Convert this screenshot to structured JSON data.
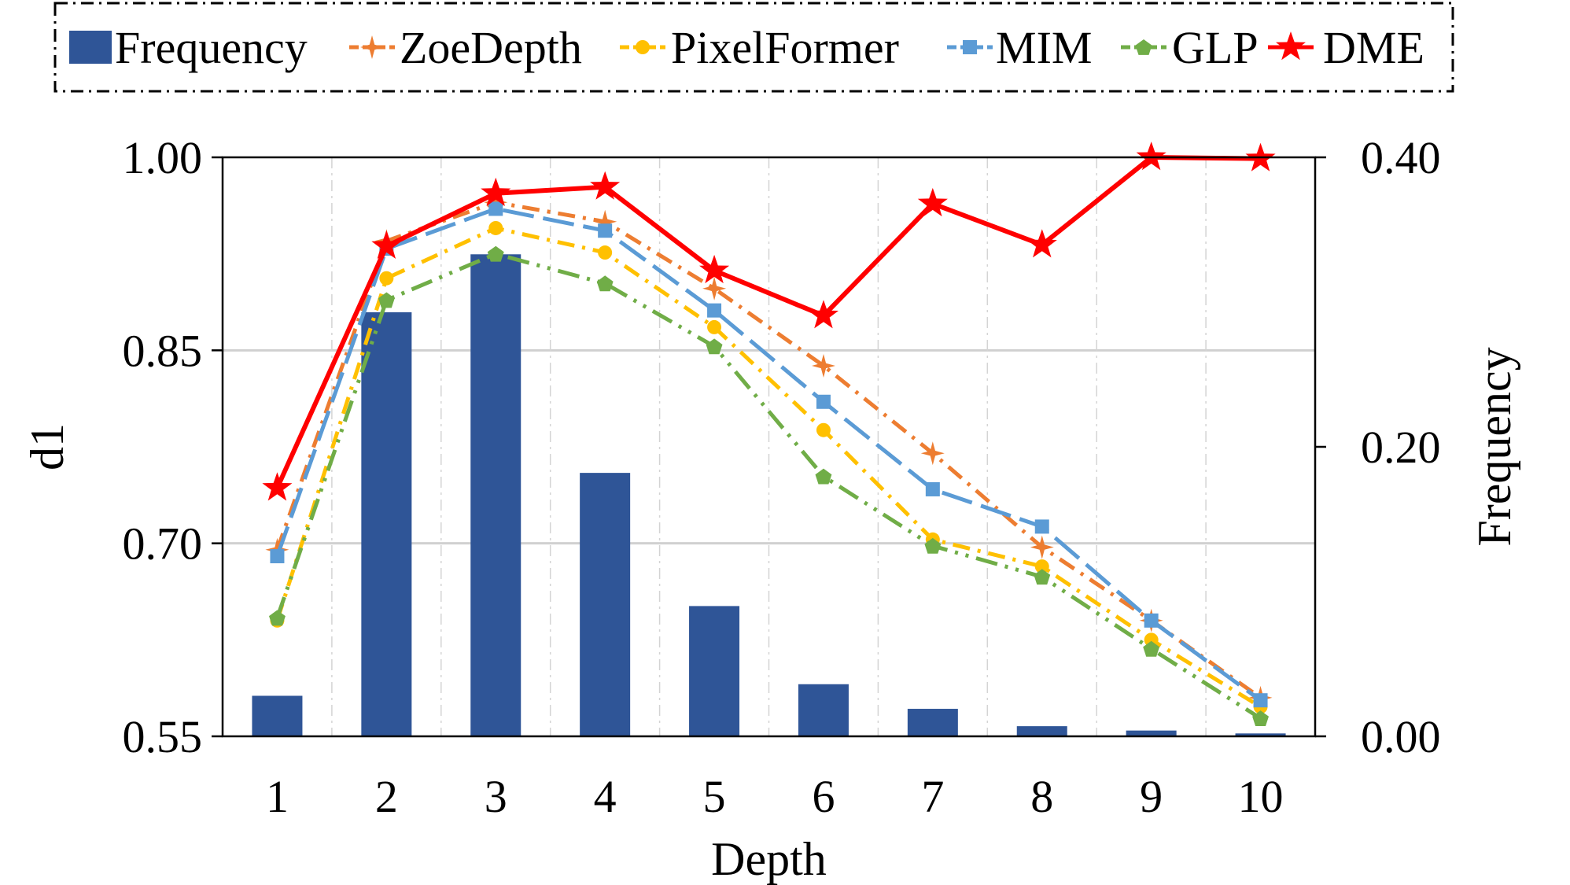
{
  "chart_data": {
    "type": "bar+line",
    "title": "",
    "xlabel": "Depth",
    "ylabel": "d1",
    "y2label": "Frequency",
    "categories": [
      "1",
      "2",
      "3",
      "4",
      "5",
      "6",
      "7",
      "8",
      "9",
      "10"
    ],
    "ylim": [
      0.55,
      1.0
    ],
    "yticks": [
      "0.55",
      "0.70",
      "0.85",
      "1.00"
    ],
    "y2lim": [
      0.0,
      0.4
    ],
    "y2ticks": [
      "0.00",
      "0.20",
      "0.40"
    ],
    "grid": "horizontal solid, vertical dash-dot",
    "legend_position": "top",
    "bars": {
      "name": "Frequency",
      "color": "#2f5597",
      "values": [
        0.028,
        0.293,
        0.333,
        0.182,
        0.09,
        0.036,
        0.019,
        0.007,
        0.004,
        0.002
      ]
    },
    "series": [
      {
        "name": "ZoeDepth",
        "color": "#ed7d31",
        "marker": "star4",
        "dash": "22,10,4,10",
        "values": [
          0.695,
          0.935,
          0.965,
          0.95,
          0.898,
          0.838,
          0.77,
          0.697,
          0.64,
          0.58
        ]
      },
      {
        "name": "PixelFormer",
        "color": "#ffc000",
        "marker": "circle",
        "dash": "22,10,4,10",
        "values": [
          0.64,
          0.906,
          0.945,
          0.926,
          0.868,
          0.788,
          0.703,
          0.682,
          0.625,
          0.573
        ]
      },
      {
        "name": "MIM",
        "color": "#5b9bd5",
        "marker": "square",
        "dash": "40,12",
        "values": [
          0.69,
          0.929,
          0.96,
          0.943,
          0.881,
          0.81,
          0.742,
          0.713,
          0.64,
          0.578
        ]
      },
      {
        "name": "GLP",
        "color": "#70ad47",
        "marker": "pentagon",
        "dash": "28,10,4,10,4,10",
        "values": [
          0.642,
          0.889,
          0.925,
          0.902,
          0.853,
          0.752,
          0.698,
          0.674,
          0.618,
          0.564
        ]
      },
      {
        "name": "DME",
        "color": "#ff0000",
        "marker": "star5",
        "dash": "",
        "values": [
          0.743,
          0.931,
          0.972,
          0.977,
          0.912,
          0.877,
          0.964,
          0.932,
          1.0,
          0.999
        ]
      }
    ]
  }
}
